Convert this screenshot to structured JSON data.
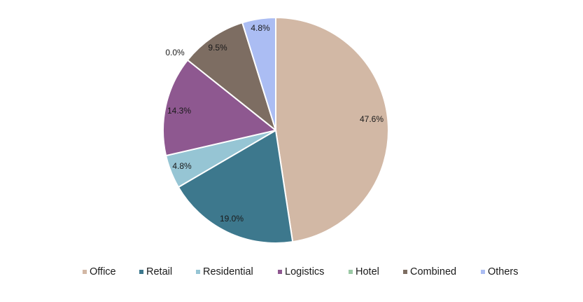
{
  "chart_data": {
    "type": "pie",
    "title": "",
    "start_angle_deg": 0,
    "direction": "clockwise",
    "legend_position": "bottom",
    "slices": [
      {
        "name": "Office",
        "value": 47.6,
        "label": "47.6%",
        "color": "#d2b8a5"
      },
      {
        "name": "Retail",
        "value": 19.0,
        "label": "19.0%",
        "color": "#3d788d"
      },
      {
        "name": "Residential",
        "value": 4.8,
        "label": "4.8%",
        "color": "#96c5d4"
      },
      {
        "name": "Logistics",
        "value": 14.3,
        "label": "14.3%",
        "color": "#8e5890"
      },
      {
        "name": "Hotel",
        "value": 0.0,
        "label": "0.0%",
        "color": "#9bc9a5"
      },
      {
        "name": "Combined",
        "value": 9.5,
        "label": "9.5%",
        "color": "#7d6d62"
      },
      {
        "name": "Others",
        "value": 4.8,
        "label": "4.8%",
        "color": "#abbdf3"
      }
    ]
  }
}
